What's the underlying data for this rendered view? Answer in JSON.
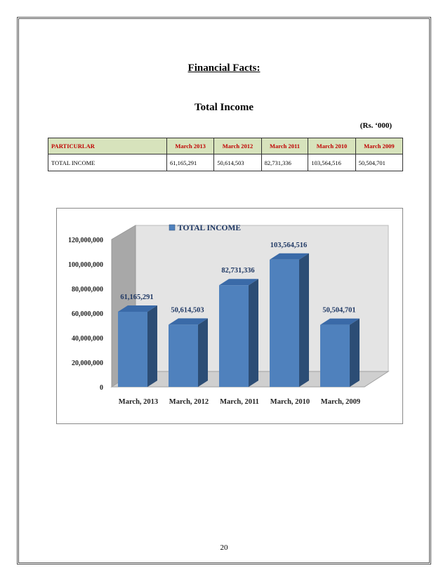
{
  "document": {
    "heading": "Financial Facts:",
    "subheading": "Total Income",
    "units_note": "(Rs. ‘000)",
    "page_number": "20"
  },
  "table": {
    "header": [
      "PARTICURLAR",
      "March 2013",
      "March 2012",
      "March 2011",
      "March 2010",
      "March 2009"
    ],
    "rows": [
      [
        "TOTAL INCOME",
        "61,165,291",
        "50,614,503",
        "82,731,336",
        "103,564,516",
        "50,504,701"
      ]
    ],
    "colors": {
      "header_bg": "#d7e3bc",
      "header_text": "#c00000"
    }
  },
  "chart_data": {
    "type": "bar",
    "categories": [
      "March, 2013",
      "March, 2012",
      "March, 2011",
      "March, 2010",
      "March, 2009"
    ],
    "series": [
      {
        "name": "TOTAL INCOME",
        "values": [
          61165291,
          50614503,
          82731336,
          103564516,
          50504701
        ],
        "labels": [
          "61,165,291",
          "50,614,503",
          "82,731,336",
          "103,564,516",
          "50,504,701"
        ]
      }
    ],
    "yticks": [
      "0",
      "20,000,000",
      "40,000,000",
      "60,000,000",
      "80,000,000",
      "100,000,000",
      "120,000,000"
    ],
    "ylim": [
      0,
      120000000
    ],
    "legend": "top-center",
    "style": "3d-columns",
    "grid": false,
    "colors": {
      "bar_front": "#4f81bd",
      "bar_side": "#2c4d75",
      "bar_top": "#3a6aa8",
      "label": "#1f3864"
    }
  }
}
